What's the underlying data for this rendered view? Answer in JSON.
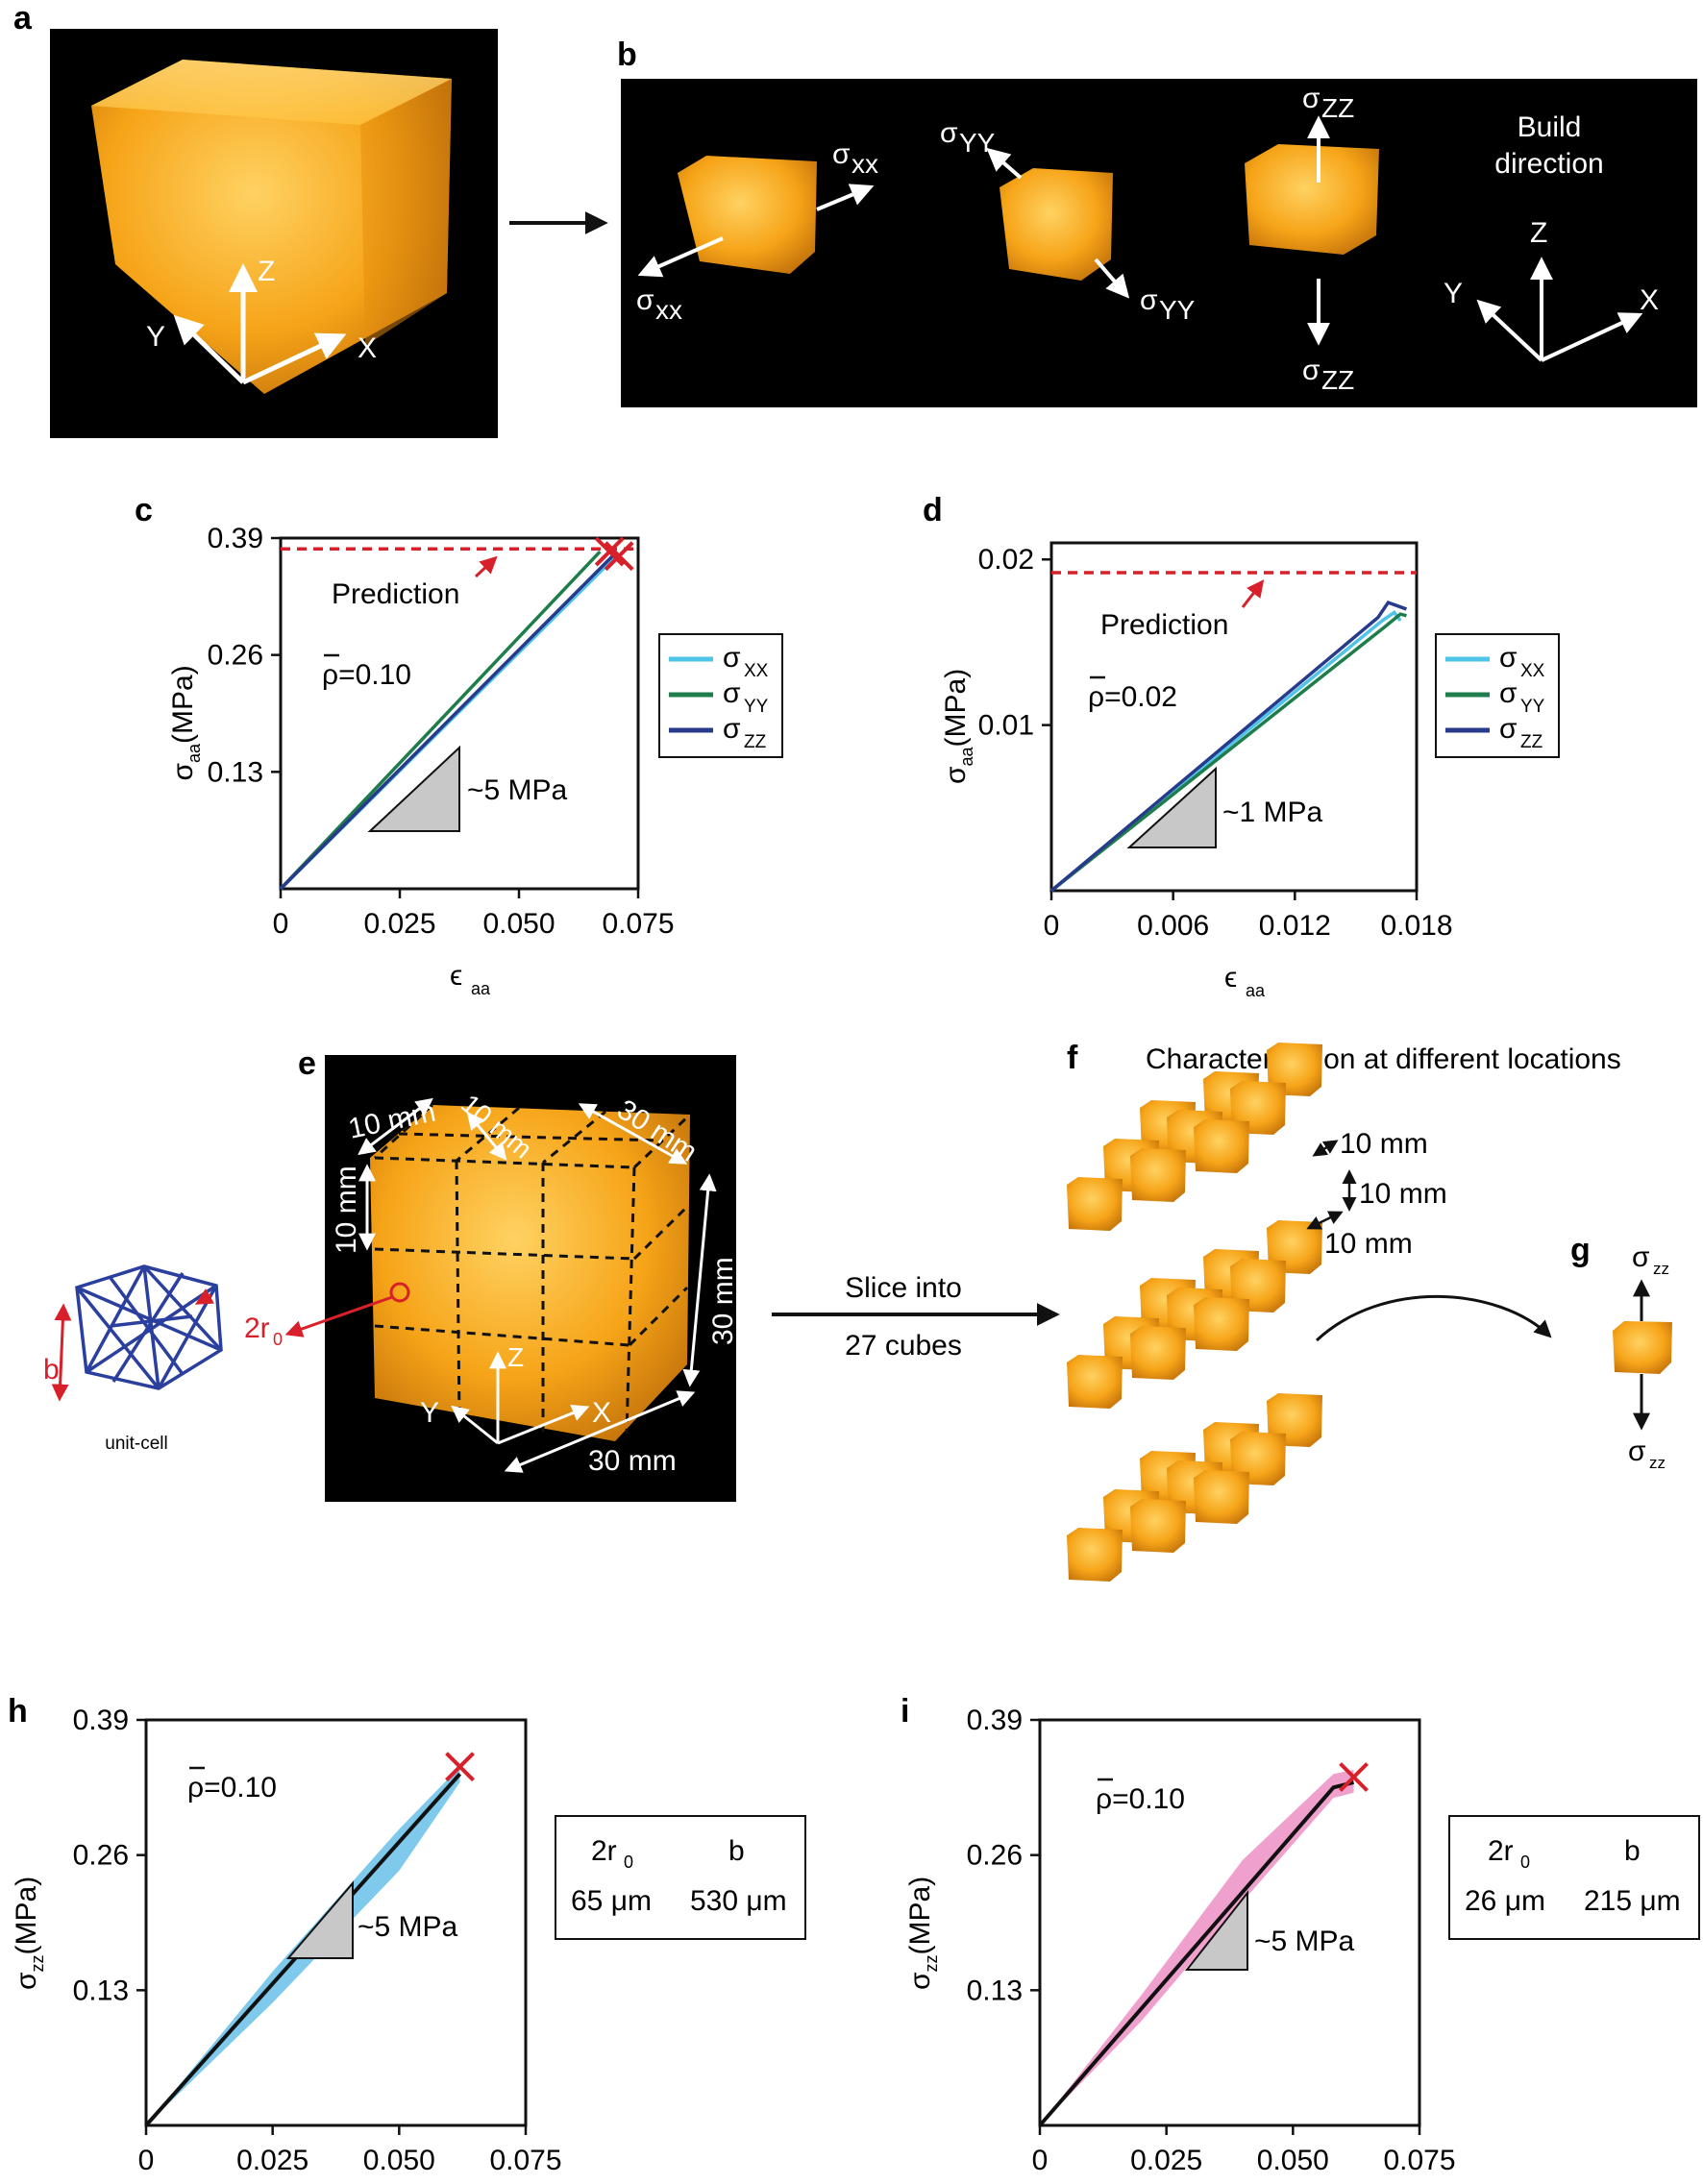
{
  "panel_letters": [
    "a",
    "b",
    "c",
    "d",
    "e",
    "f",
    "g",
    "h",
    "i"
  ],
  "panel_b": {
    "sigma_xx": "σ",
    "sub_xx": "xx",
    "sigma_yy": "σ",
    "sub_yy": "YY",
    "sigma_zz": "σ",
    "sub_zz": "ZZ",
    "build_direction": [
      "Build",
      "direction"
    ]
  },
  "axes_letters": {
    "x": "X",
    "y": "Y",
    "z": "Z"
  },
  "colors": {
    "xx": "#4fc3e8",
    "yy": "#1e7d4a",
    "zz": "#283a8c",
    "prediction": "#d8202a",
    "i_band": "#f0a0cc",
    "h_band": "#7ec9ec"
  },
  "legend": {
    "sigma": "σ",
    "xx": "XX",
    "yy": "YY",
    "zz": "ZZ"
  },
  "prediction_label": "Prediction",
  "panel_e": {
    "dims": [
      "10 mm",
      "10 mm",
      "10 mm",
      "30 mm",
      "30 mm",
      "30 mm"
    ],
    "unit_cell": "unit-cell",
    "b_label": "b",
    "r0_label": "2r",
    "r0_sub": "0"
  },
  "slice": [
    "Slice into",
    "27 cubes"
  ],
  "panel_f": {
    "title": "Characterisation at different locations",
    "dims": [
      "10 mm",
      "10 mm",
      "10 mm"
    ]
  },
  "panel_g": {
    "sigma": "σ",
    "sub": "zz"
  },
  "table_h": {
    "headers": [
      "2r",
      "b"
    ],
    "header_sub": "0",
    "values": [
      "65 μm",
      "530 μm"
    ]
  },
  "table_i": {
    "headers": [
      "2r",
      "b"
    ],
    "header_sub": "0",
    "values": [
      "26 μm",
      "215 μm"
    ]
  },
  "chart_data": [
    {
      "panel": "c",
      "type": "line",
      "xlabel": "ϵ",
      "xlabel_sub": "aa",
      "ylabel": "σ",
      "ylabel_sub": "aa",
      "ylabel_unit": "(MPa)",
      "xlim": [
        0,
        0.075
      ],
      "ylim": [
        0,
        0.39
      ],
      "xticks": [
        "0",
        "0.025",
        "0.050",
        "0.075"
      ],
      "xtick_values": [
        0,
        0.025,
        0.05,
        0.075
      ],
      "yticks": [
        "0.13",
        "0.26",
        "0.39"
      ],
      "ytick_values": [
        0.13,
        0.26,
        0.39
      ],
      "density": "ρ=0.10",
      "prediction": 0.378,
      "slope_label": "~5 MPa",
      "series": [
        {
          "name": "σXX",
          "x": [
            0,
            0.07
          ],
          "y": [
            0,
            0.368
          ]
        },
        {
          "name": "σYY",
          "x": [
            0,
            0.067
          ],
          "y": [
            0,
            0.375
          ]
        },
        {
          "name": "σZZ",
          "x": [
            0,
            0.07
          ],
          "y": [
            0,
            0.372
          ]
        }
      ],
      "failure": {
        "x": [
          0.069,
          0.071
        ],
        "y": [
          0.375,
          0.37
        ]
      }
    },
    {
      "panel": "d",
      "type": "line",
      "xlabel": "ϵ",
      "xlabel_sub": "aa",
      "ylabel": "σ",
      "ylabel_sub": "aa",
      "ylabel_unit": "(MPa)",
      "xlim": [
        0,
        0.018
      ],
      "ylim": [
        0,
        0.021
      ],
      "xticks": [
        "0",
        "0.006",
        "0.012",
        "0.018"
      ],
      "xtick_values": [
        0,
        0.006,
        0.012,
        0.018
      ],
      "yticks": [
        "0.01",
        "0.02"
      ],
      "ytick_values": [
        0.01,
        0.02
      ],
      "density": "ρ=0.02",
      "prediction": 0.0192,
      "slope_label": "~1 MPa",
      "series": [
        {
          "name": "σXX",
          "x": [
            0,
            0.0163,
            0.0169,
            0.0172
          ],
          "y": [
            0,
            0.0163,
            0.0168,
            0.0163
          ]
        },
        {
          "name": "σYY",
          "x": [
            0,
            0.0165,
            0.0172,
            0.0175
          ],
          "y": [
            0,
            0.016,
            0.0167,
            0.0166
          ]
        },
        {
          "name": "σZZ",
          "x": [
            0,
            0.0161,
            0.0166,
            0.0175
          ],
          "y": [
            0,
            0.0165,
            0.0174,
            0.017
          ]
        }
      ]
    },
    {
      "panel": "h",
      "type": "line",
      "xlabel": "ϵ",
      "xlabel_sub": "zz",
      "ylabel": "σ",
      "ylabel_sub": "zz",
      "ylabel_unit": "(MPa)",
      "xlim": [
        0,
        0.075
      ],
      "ylim": [
        0,
        0.39
      ],
      "xticks": [
        "0",
        "0.025",
        "0.050",
        "0.075"
      ],
      "xtick_values": [
        0,
        0.025,
        0.05,
        0.075
      ],
      "yticks": [
        "0.13",
        "0.26",
        "0.39"
      ],
      "ytick_values": [
        0.13,
        0.26,
        0.39
      ],
      "density": "ρ=0.10",
      "slope_label": "~5 MPa",
      "series": [
        {
          "name": "mean",
          "x": [
            0,
            0.062
          ],
          "y": [
            0,
            0.338
          ]
        }
      ],
      "band": {
        "x": [
          0,
          0.025,
          0.05,
          0.062
        ],
        "lower": [
          0,
          0.118,
          0.245,
          0.33
        ],
        "upper": [
          0,
          0.148,
          0.285,
          0.345
        ]
      },
      "failure": {
        "x": [
          0.062
        ],
        "y": [
          0.345
        ]
      }
    },
    {
      "panel": "i",
      "type": "line",
      "xlabel": "ϵ",
      "xlabel_sub": "zz",
      "ylabel": "σ",
      "ylabel_sub": "zz",
      "ylabel_unit": "(MPa)",
      "xlim": [
        0,
        0.075
      ],
      "ylim": [
        0,
        0.39
      ],
      "xticks": [
        "0",
        "0.025",
        "0.050",
        "0.075"
      ],
      "xtick_values": [
        0,
        0.025,
        0.05,
        0.075
      ],
      "yticks": [
        "0.13",
        "0.26",
        "0.39"
      ],
      "ytick_values": [
        0.13,
        0.26,
        0.39
      ],
      "density": "ρ=0.10",
      "slope_label": "~5 MPa",
      "series": [
        {
          "name": "mean",
          "x": [
            0,
            0.058,
            0.062
          ],
          "y": [
            0,
            0.325,
            0.33
          ]
        }
      ],
      "band": {
        "x": [
          0,
          0.02,
          0.04,
          0.058,
          0.062
        ],
        "lower": [
          0,
          0.1,
          0.215,
          0.315,
          0.32
        ],
        "upper": [
          0,
          0.125,
          0.255,
          0.338,
          0.342
        ]
      },
      "failure": {
        "x": [
          0.062
        ],
        "y": [
          0.335
        ]
      }
    }
  ]
}
